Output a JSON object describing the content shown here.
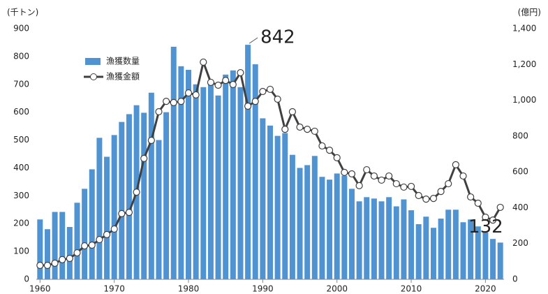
{
  "chart_data": {
    "type": "bar-line",
    "y_label": "(千トン)",
    "y2_label": "(億円)",
    "x": [
      1960,
      1961,
      1962,
      1963,
      1964,
      1965,
      1966,
      1967,
      1968,
      1969,
      1970,
      1971,
      1972,
      1973,
      1974,
      1975,
      1976,
      1977,
      1978,
      1979,
      1980,
      1981,
      1982,
      1983,
      1984,
      1985,
      1986,
      1987,
      1988,
      1989,
      1990,
      1991,
      1992,
      1993,
      1994,
      1995,
      1996,
      1997,
      1998,
      1999,
      2000,
      2001,
      2002,
      2003,
      2004,
      2005,
      2006,
      2007,
      2008,
      2009,
      2010,
      2011,
      2012,
      2013,
      2014,
      2015,
      2016,
      2017,
      2018,
      2019,
      2020,
      2021,
      2022
    ],
    "xlim": [
      1959.5,
      2022.5
    ],
    "xticks": [
      1960,
      1970,
      1980,
      1990,
      2000,
      2010,
      2020
    ],
    "ylim": [
      0,
      900
    ],
    "yticks": [
      0,
      100,
      200,
      300,
      400,
      500,
      600,
      700,
      800,
      900
    ],
    "y2lim": [
      0,
      1400
    ],
    "y2ticks": [
      0,
      200,
      400,
      600,
      800,
      {
        "value": 1000,
        "label": "1,000"
      },
      {
        "value": 1200,
        "label": "1,200"
      },
      {
        "value": 1400,
        "label": "1,400"
      }
    ],
    "legend": "upper left",
    "series": [
      {
        "name": "漁獲数量",
        "type": "bar",
        "color": "#4f93d3",
        "values": [
          215,
          180,
          242,
          242,
          188,
          275,
          325,
          395,
          508,
          440,
          518,
          565,
          593,
          625,
          598,
          670,
          500,
          600,
          835,
          765,
          752,
          700,
          690,
          700,
          660,
          735,
          750,
          690,
          842,
          772,
          578,
          552,
          515,
          525,
          447,
          400,
          410,
          443,
          368,
          358,
          380,
          372,
          325,
          280,
          295,
          290,
          280,
          295,
          262,
          287,
          248,
          198,
          225,
          185,
          218,
          250,
          250,
          205,
          215,
          190,
          168,
          145,
          132
        ]
      },
      {
        "name": "漁獲金額",
        "type": "line",
        "axis": "y2",
        "color": "#404040",
        "values": [
          78,
          78,
          90,
          110,
          117,
          148,
          187,
          191,
          222,
          250,
          281,
          367,
          374,
          487,
          675,
          776,
          936,
          994,
          987,
          994,
          1041,
          1030,
          1213,
          1100,
          1084,
          1111,
          1088,
          1154,
          967,
          994,
          1049,
          1061,
          1006,
          838,
          936,
          850,
          838,
          827,
          745,
          721,
          679,
          597,
          589,
          523,
          612,
          577,
          554,
          577,
          534,
          515,
          519,
          468,
          448,
          452,
          491,
          534,
          640,
          577,
          460,
          425,
          347,
          331,
          402
        ]
      }
    ]
  }
}
